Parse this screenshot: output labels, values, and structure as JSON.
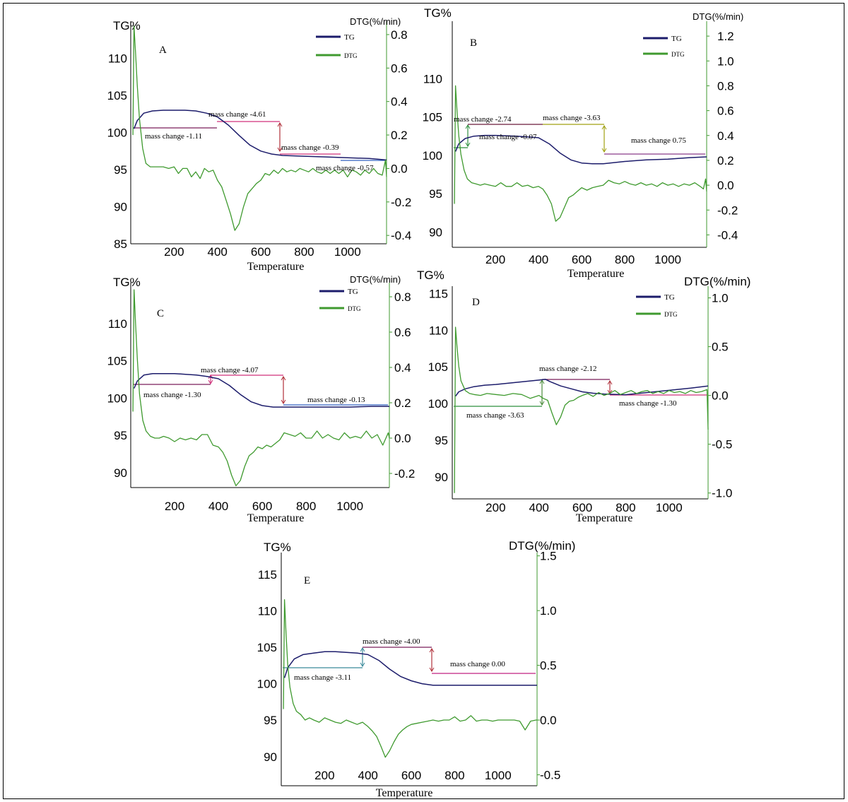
{
  "colors": {
    "tg": "#1c1c6b",
    "dtg": "#3f9a2f",
    "dtg_axis": "#3f9a2f"
  },
  "legend": {
    "tg": "TG",
    "dtg": "DTG"
  },
  "chart_data": [
    {
      "type": "line",
      "panel": "A",
      "xlabel": "Temperature",
      "ylabel": "TG%",
      "y2label": "DTG(%/min)",
      "xlim": [
        0,
        1180
      ],
      "ylim": [
        85,
        115
      ],
      "y2lim": [
        -0.45,
        0.88
      ],
      "xticks": [
        "200",
        "400",
        "600",
        "800",
        "1000"
      ],
      "yticks": [
        "85",
        "90",
        "95",
        "100",
        "105",
        "110"
      ],
      "y2ticks": [
        "-0.4",
        "-0.2",
        "0.0",
        "0.2",
        "0.4",
        "0.6",
        "0.8"
      ],
      "series": [
        {
          "name": "TG",
          "x": [
            15,
            30,
            60,
            100,
            150,
            200,
            250,
            300,
            350,
            400,
            450,
            500,
            550,
            600,
            650,
            700,
            800,
            900,
            1000,
            1100,
            1180
          ],
          "y": [
            100.5,
            101.6,
            102.6,
            102.9,
            103.0,
            103.0,
            103.0,
            102.9,
            102.6,
            102.1,
            101.0,
            99.6,
            98.3,
            97.5,
            97.1,
            96.9,
            96.8,
            96.7,
            96.6,
            96.5,
            96.3
          ]
        },
        {
          "name": "DTG",
          "x": [
            10,
            15,
            22,
            30,
            40,
            55,
            70,
            90,
            110,
            130,
            150,
            175,
            200,
            220,
            240,
            260,
            280,
            300,
            320,
            340,
            360,
            380,
            400,
            420,
            440,
            460,
            480,
            500,
            520,
            540,
            560,
            580,
            600,
            620,
            640,
            660,
            680,
            700,
            720,
            740,
            760,
            780,
            800,
            820,
            840,
            860,
            880,
            900,
            920,
            940,
            960,
            980,
            1000,
            1020,
            1040,
            1060,
            1080,
            1100,
            1120,
            1140,
            1160,
            1175,
            1180
          ],
          "y": [
            0.2,
            0.85,
            0.7,
            0.5,
            0.3,
            0.12,
            0.03,
            0.01,
            0.01,
            0.01,
            0.01,
            0.0,
            0.01,
            -0.03,
            0.0,
            0.0,
            -0.05,
            -0.02,
            -0.06,
            0.0,
            -0.02,
            -0.01,
            -0.07,
            -0.11,
            -0.19,
            -0.27,
            -0.37,
            -0.33,
            -0.23,
            -0.15,
            -0.12,
            -0.09,
            -0.07,
            -0.03,
            -0.04,
            -0.01,
            -0.03,
            0.0,
            -0.02,
            -0.01,
            -0.02,
            0.0,
            -0.01,
            -0.02,
            0.0,
            -0.02,
            -0.03,
            -0.01,
            -0.03,
            -0.01,
            -0.03,
            -0.01,
            -0.05,
            -0.01,
            -0.02,
            -0.04,
            -0.01,
            -0.03,
            0.0,
            -0.03,
            -0.04,
            0.05,
            -0.05
          ]
        }
      ],
      "annotations": [
        "mass change -1.11",
        "mass change -4.61",
        "mass change -0.39",
        "mass change -0.57"
      ]
    },
    {
      "type": "line",
      "panel": "B",
      "xlabel": "Temperature",
      "ylabel": "TG%",
      "y2label": "DTG(%/min)",
      "xlim": [
        0,
        1180
      ],
      "ylim": [
        88,
        117.5
      ],
      "y2lim": [
        -0.5,
        1.32
      ],
      "xticks": [
        "200",
        "400",
        "600",
        "800",
        "1000"
      ],
      "yticks": [
        "90",
        "95",
        "100",
        "105",
        "110"
      ],
      "y2ticks": [
        "-0.4",
        "-0.2",
        "0.0",
        "0.2",
        "0.4",
        "0.6",
        "0.8",
        "1.0",
        "1.2"
      ],
      "series": [
        {
          "name": "TG",
          "x": [
            15,
            30,
            60,
            100,
            150,
            200,
            300,
            400,
            450,
            500,
            550,
            600,
            650,
            700,
            800,
            900,
            1000,
            1100,
            1180
          ],
          "y": [
            100.5,
            101.5,
            102.2,
            102.5,
            102.6,
            102.6,
            102.5,
            102.3,
            101.5,
            100.3,
            99.4,
            99.0,
            98.9,
            98.9,
            99.2,
            99.4,
            99.5,
            99.7,
            99.8
          ]
        },
        {
          "name": "DTG",
          "x": [
            10,
            15,
            22,
            30,
            40,
            55,
            70,
            90,
            110,
            130,
            150,
            175,
            200,
            225,
            250,
            275,
            300,
            325,
            350,
            375,
            400,
            420,
            440,
            460,
            480,
            500,
            520,
            540,
            560,
            580,
            600,
            625,
            650,
            675,
            700,
            725,
            750,
            775,
            800,
            825,
            850,
            875,
            900,
            925,
            950,
            975,
            1000,
            1025,
            1050,
            1075,
            1100,
            1125,
            1150,
            1165,
            1175,
            1180
          ],
          "y": [
            -0.15,
            0.8,
            0.6,
            0.4,
            0.25,
            0.12,
            0.05,
            0.02,
            0.01,
            0.0,
            0.01,
            0.0,
            -0.01,
            0.02,
            -0.01,
            -0.01,
            0.02,
            -0.01,
            0.0,
            -0.02,
            -0.01,
            -0.03,
            -0.08,
            -0.15,
            -0.29,
            -0.26,
            -0.18,
            -0.1,
            -0.08,
            -0.05,
            -0.02,
            -0.04,
            -0.02,
            -0.01,
            0.0,
            0.04,
            0.02,
            0.01,
            0.03,
            0.01,
            0.0,
            0.02,
            0.0,
            0.01,
            -0.01,
            0.02,
            0.0,
            0.01,
            -0.01,
            0.01,
            0.0,
            0.02,
            -0.01,
            -0.03,
            0.05,
            -0.05
          ]
        }
      ],
      "annotations": [
        "mass change -2.74",
        "mass change -0.07",
        "mass change -3.63",
        "mass change 0.75"
      ]
    },
    {
      "type": "line",
      "panel": "C",
      "xlabel": "Temperature",
      "ylabel": "TG%",
      "y2label": "DTG(%/min)",
      "xlim": [
        0,
        1180
      ],
      "ylim": [
        88,
        115.5
      ],
      "y2lim": [
        -0.28,
        0.88
      ],
      "xticks": [
        "200",
        "400",
        "600",
        "800",
        "1000"
      ],
      "yticks": [
        "90",
        "95",
        "100",
        "105",
        "110"
      ],
      "y2ticks": [
        "-0.2",
        "0.0",
        "0.2",
        "0.4",
        "0.6",
        "0.8"
      ],
      "series": [
        {
          "name": "TG",
          "x": [
            15,
            30,
            60,
            100,
            150,
            200,
            250,
            300,
            350,
            400,
            450,
            500,
            550,
            600,
            650,
            700,
            800,
            900,
            1000,
            1100,
            1180
          ],
          "y": [
            101.3,
            102.3,
            103.1,
            103.3,
            103.3,
            103.3,
            103.2,
            103.1,
            102.9,
            102.6,
            101.7,
            100.5,
            99.5,
            99.0,
            98.8,
            98.8,
            98.8,
            98.8,
            98.8,
            98.9,
            98.9
          ]
        },
        {
          "name": "DTG",
          "x": [
            10,
            15,
            22,
            30,
            40,
            55,
            70,
            90,
            110,
            130,
            150,
            175,
            200,
            225,
            250,
            275,
            300,
            325,
            350,
            375,
            400,
            420,
            440,
            460,
            480,
            500,
            520,
            540,
            560,
            580,
            600,
            620,
            640,
            660,
            680,
            700,
            725,
            750,
            775,
            800,
            825,
            850,
            875,
            900,
            925,
            950,
            975,
            1000,
            1025,
            1050,
            1075,
            1100,
            1125,
            1150,
            1175,
            1180
          ],
          "y": [
            0.15,
            0.84,
            0.65,
            0.45,
            0.25,
            0.1,
            0.04,
            0.01,
            0.0,
            0.0,
            0.01,
            0.0,
            -0.02,
            0.0,
            -0.01,
            0.0,
            -0.01,
            0.02,
            0.02,
            -0.04,
            -0.05,
            -0.08,
            -0.13,
            -0.21,
            -0.27,
            -0.24,
            -0.16,
            -0.1,
            -0.08,
            -0.05,
            -0.06,
            -0.04,
            -0.05,
            -0.03,
            -0.01,
            0.03,
            0.02,
            0.01,
            0.03,
            0.0,
            0.0,
            0.04,
            0.0,
            0.02,
            0.0,
            -0.01,
            0.03,
            0.0,
            0.01,
            0.0,
            0.04,
            0.0,
            0.02,
            -0.04,
            0.03,
            0.0
          ]
        }
      ],
      "annotations": [
        "mass change -1.30",
        "mass change -4.07",
        "mass change -0.13"
      ]
    },
    {
      "type": "line",
      "panel": "D",
      "xlabel": "Temperature",
      "ylabel": "TG%",
      "y2label": "DTG(%/min)",
      "xlim": [
        0,
        1180
      ],
      "ylim": [
        87,
        116
      ],
      "y2lim": [
        -1.06,
        1.12
      ],
      "xticks": [
        "200",
        "400",
        "600",
        "800",
        "1000"
      ],
      "yticks": [
        "90",
        "95",
        "100",
        "105",
        "110",
        "115"
      ],
      "y2ticks": [
        "-1.0",
        "-0.5",
        "0.0",
        "0.5",
        "1.0"
      ],
      "series": [
        {
          "name": "TG",
          "x": [
            15,
            30,
            60,
            100,
            150,
            200,
            300,
            400,
            430,
            450,
            500,
            550,
            600,
            650,
            700,
            800,
            900,
            1000,
            1100,
            1180
          ],
          "y": [
            101.0,
            101.6,
            102.0,
            102.3,
            102.5,
            102.6,
            102.9,
            103.2,
            103.3,
            103.0,
            102.4,
            102.0,
            101.6,
            101.4,
            101.3,
            101.2,
            101.5,
            101.8,
            102.1,
            102.4
          ]
        },
        {
          "name": "DTG",
          "x": [
            10,
            15,
            22,
            30,
            40,
            60,
            80,
            100,
            130,
            160,
            200,
            240,
            280,
            320,
            360,
            400,
            420,
            440,
            460,
            480,
            500,
            520,
            540,
            560,
            580,
            600,
            625,
            650,
            675,
            700,
            725,
            750,
            775,
            800,
            825,
            850,
            875,
            900,
            925,
            950,
            975,
            1000,
            1025,
            1050,
            1075,
            1100,
            1125,
            1150,
            1175,
            1180
          ],
          "y": [
            -1.0,
            0.7,
            0.5,
            0.3,
            0.15,
            0.05,
            0.02,
            0.01,
            0.0,
            0.02,
            0.01,
            0.0,
            0.02,
            0.01,
            -0.03,
            0.0,
            -0.03,
            -0.05,
            -0.18,
            -0.3,
            -0.22,
            -0.1,
            -0.06,
            -0.05,
            -0.02,
            0.0,
            0.02,
            -0.01,
            0.03,
            0.0,
            0.02,
            0.05,
            0.01,
            0.03,
            0.05,
            0.02,
            0.04,
            0.05,
            0.02,
            0.04,
            0.02,
            0.05,
            0.03,
            0.04,
            0.02,
            0.05,
            0.03,
            0.04,
            0.06,
            -0.35
          ]
        }
      ],
      "annotations": [
        "mass change -3.63",
        "mass change -2.12",
        "mass change -1.30"
      ]
    },
    {
      "type": "line",
      "panel": "E",
      "xlabel": "Temperature",
      "ylabel": "TG%",
      "y2label": "DTG(%/min)",
      "xlim": [
        0,
        1180
      ],
      "ylim": [
        86,
        118
      ],
      "y2lim": [
        -0.6,
        1.53
      ],
      "xticks": [
        "200",
        "400",
        "600",
        "800",
        "1000"
      ],
      "yticks": [
        "90",
        "95",
        "100",
        "105",
        "110",
        "115"
      ],
      "y2ticks": [
        "-0.5",
        "0.0",
        "0.5",
        "1.0",
        "1.5"
      ],
      "series": [
        {
          "name": "TG",
          "x": [
            15,
            30,
            60,
            100,
            150,
            200,
            250,
            300,
            350,
            400,
            450,
            500,
            550,
            600,
            650,
            700,
            800,
            900,
            1000,
            1100,
            1180
          ],
          "y": [
            100.8,
            102.2,
            103.4,
            104.0,
            104.2,
            104.4,
            104.4,
            104.3,
            104.2,
            104.0,
            103.2,
            102.0,
            101.0,
            100.4,
            100.0,
            99.8,
            99.8,
            99.8,
            99.8,
            99.8,
            99.8
          ]
        },
        {
          "name": "DTG",
          "x": [
            10,
            15,
            22,
            30,
            40,
            55,
            70,
            90,
            110,
            130,
            150,
            175,
            200,
            225,
            250,
            275,
            300,
            325,
            350,
            375,
            400,
            420,
            440,
            460,
            480,
            500,
            520,
            540,
            560,
            580,
            600,
            625,
            650,
            675,
            700,
            725,
            750,
            775,
            800,
            825,
            850,
            875,
            900,
            925,
            950,
            975,
            1000,
            1025,
            1050,
            1075,
            1100,
            1125,
            1150,
            1175,
            1180
          ],
          "y": [
            0.1,
            1.1,
            0.8,
            0.5,
            0.3,
            0.15,
            0.08,
            0.05,
            0.0,
            0.02,
            0.0,
            -0.02,
            0.02,
            0.0,
            -0.02,
            -0.03,
            0.0,
            -0.02,
            -0.04,
            -0.02,
            -0.06,
            -0.1,
            -0.15,
            -0.24,
            -0.34,
            -0.28,
            -0.2,
            -0.13,
            -0.09,
            -0.06,
            -0.04,
            -0.03,
            -0.02,
            -0.01,
            0.0,
            -0.01,
            0.0,
            0.0,
            0.03,
            -0.01,
            0.0,
            0.04,
            -0.01,
            0.0,
            0.0,
            -0.01,
            0.0,
            0.0,
            0.0,
            0.0,
            -0.01,
            -0.09,
            -0.01,
            0.0,
            0.0
          ]
        }
      ],
      "annotations": [
        "mass change -3.11",
        "mass change -4.00",
        "mass change 0.00"
      ]
    }
  ]
}
